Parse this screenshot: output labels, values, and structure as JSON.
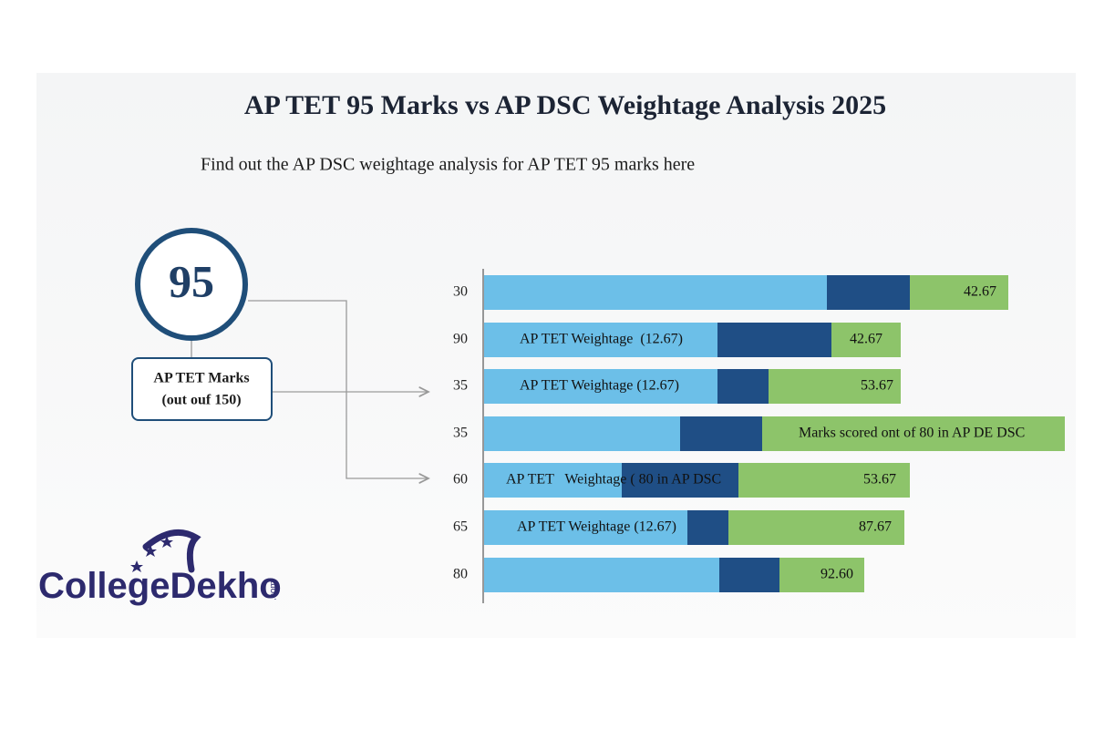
{
  "header": {
    "title": "AP TET 95 Marks vs AP DSC Weightage Analysis 2025",
    "subtitle": "Find out the AP DSC weightage analysis for AP TET 95 marks here"
  },
  "score": {
    "value": "95",
    "caption_line1": "AP TET Marks",
    "caption_line2": "(out ouf 150)"
  },
  "rows": [
    {
      "label": "30",
      "end_text": "42.67"
    },
    {
      "label": "90",
      "bar_text": "AP TET Weightage  (12.67)",
      "end_text": "42.67"
    },
    {
      "label": "35",
      "bar_text": "AP TET Weightage (12.67)",
      "end_text": "53.67"
    },
    {
      "label": "35",
      "end_text": "Marks scored ont of 80 in AP DE DSC"
    },
    {
      "label": "60",
      "bar_text": "AP TET   Weightage ( 80 in AP DSC",
      "end_text": "53.67"
    },
    {
      "label": "65",
      "bar_text": "AP TET Weightage (12.67)",
      "end_text": "87.67"
    },
    {
      "label": "80",
      "end_text": "92.60"
    }
  ],
  "logo": {
    "part1": "College",
    "part2": "Dekho",
    "suffix": ".com"
  }
}
